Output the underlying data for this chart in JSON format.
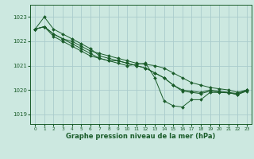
{
  "title": "Graphe pression niveau de la mer (hPa)",
  "bg_color": "#cce8e0",
  "grid_color": "#aacccc",
  "line_color": "#1a5c2a",
  "xlim": [
    -0.5,
    23.5
  ],
  "ylim": [
    1018.6,
    1023.5
  ],
  "yticks": [
    1019,
    1020,
    1021,
    1022,
    1023
  ],
  "xticks": [
    0,
    1,
    2,
    3,
    4,
    5,
    6,
    7,
    8,
    9,
    10,
    11,
    12,
    13,
    14,
    15,
    16,
    17,
    18,
    19,
    20,
    21,
    22,
    23
  ],
  "series": [
    {
      "x": [
        0,
        1,
        2,
        3,
        4,
        5,
        6,
        7,
        8,
        9,
        10,
        11,
        12,
        13,
        14,
        15,
        16,
        17,
        18,
        19,
        20,
        21,
        22,
        23
      ],
      "y": [
        1022.5,
        1022.6,
        1022.3,
        1022.1,
        1022.0,
        1021.8,
        1021.6,
        1021.5,
        1021.4,
        1021.3,
        1021.2,
        1021.1,
        1021.05,
        1021.0,
        1020.9,
        1020.7,
        1020.5,
        1020.3,
        1020.2,
        1020.1,
        1020.05,
        1020.0,
        1019.9,
        1020.0
      ]
    },
    {
      "x": [
        0,
        1,
        2,
        3,
        4,
        5,
        6,
        7,
        8,
        9,
        10,
        11,
        12,
        13,
        14,
        15,
        16,
        17,
        18,
        19,
        20,
        21,
        22,
        23
      ],
      "y": [
        1022.5,
        1023.0,
        1022.5,
        1022.3,
        1022.1,
        1021.9,
        1021.7,
        1021.4,
        1021.3,
        1021.2,
        1021.1,
        1021.0,
        1020.9,
        1020.7,
        1020.5,
        1020.2,
        1020.0,
        1019.95,
        1019.9,
        1020.0,
        1019.95,
        1019.9,
        1019.85,
        1020.0
      ]
    },
    {
      "x": [
        0,
        1,
        2,
        3,
        4,
        5,
        6,
        7,
        8,
        9,
        10,
        11,
        12,
        13,
        14,
        15,
        16,
        17,
        18,
        19,
        20,
        21,
        22,
        23
      ],
      "y": [
        1022.5,
        1022.6,
        1022.3,
        1022.1,
        1021.9,
        1021.7,
        1021.5,
        1021.3,
        1021.2,
        1021.2,
        1021.1,
        1021.0,
        1020.9,
        1020.7,
        1020.5,
        1020.2,
        1019.95,
        1019.9,
        1019.85,
        1019.95,
        1019.9,
        1019.88,
        1019.82,
        1019.95
      ]
    },
    {
      "x": [
        0,
        1,
        2,
        3,
        4,
        5,
        6,
        7,
        8,
        9,
        10,
        11,
        12,
        13,
        14,
        15,
        16,
        17,
        18,
        19,
        20,
        21,
        22,
        23
      ],
      "y": [
        1022.5,
        1022.6,
        1022.2,
        1022.0,
        1021.8,
        1021.6,
        1021.4,
        1021.3,
        1021.2,
        1021.1,
        1021.0,
        1021.05,
        1021.1,
        1020.5,
        1019.55,
        1019.35,
        1019.3,
        1019.6,
        1019.6,
        1019.9,
        1019.9,
        1019.9,
        1019.8,
        1020.0
      ]
    }
  ]
}
